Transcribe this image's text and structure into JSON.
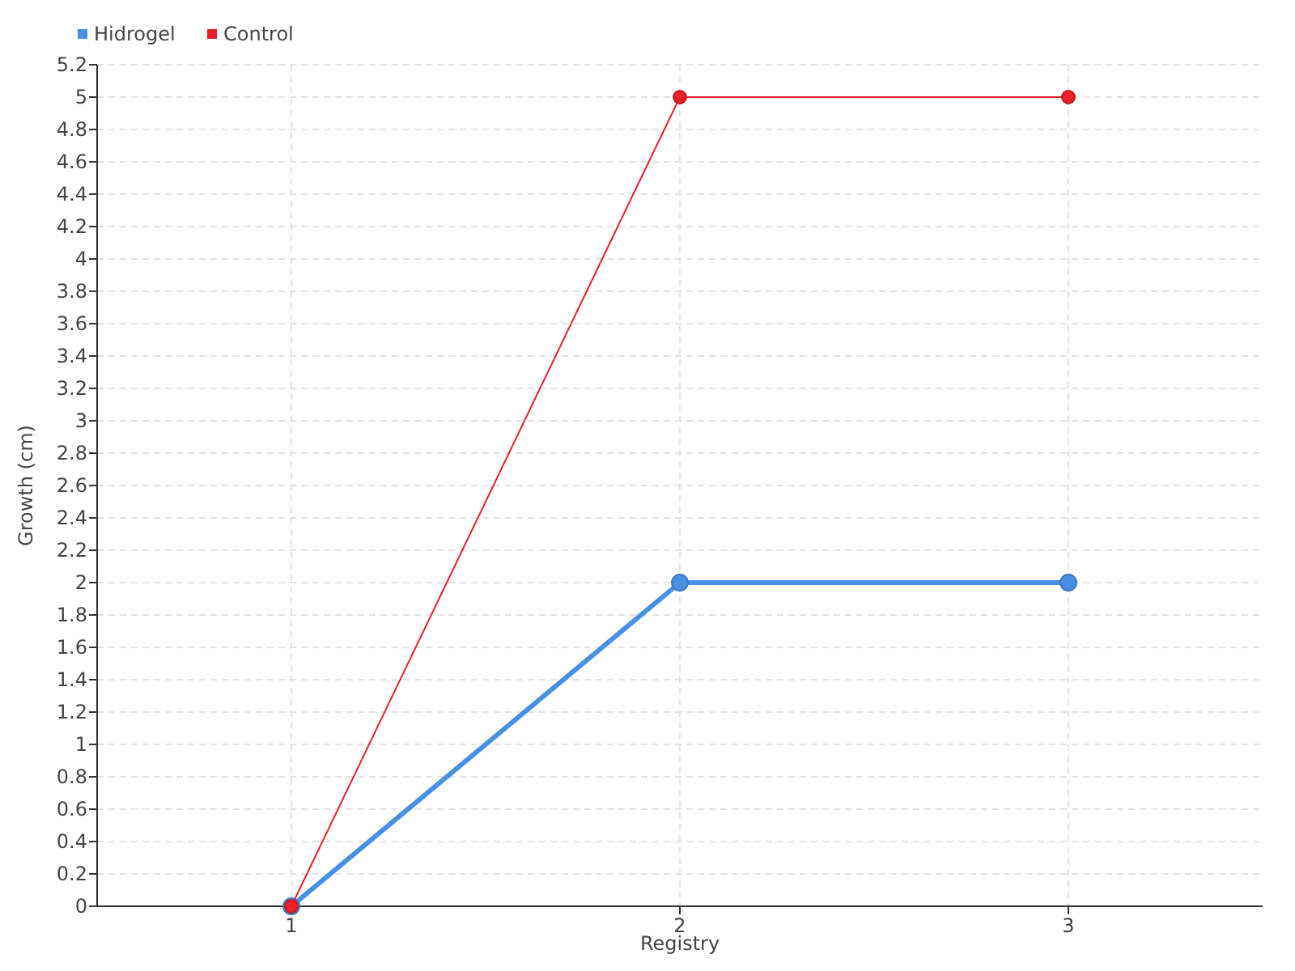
{
  "chart_data": {
    "type": "line",
    "xlabel": "Registry",
    "ylabel": "Growth (cm)",
    "x": [
      1,
      2,
      3
    ],
    "xlim": [
      0.5,
      3.5
    ],
    "xticks": [
      1,
      2,
      3
    ],
    "ylim": [
      0,
      5.2
    ],
    "yticks": [
      0,
      0.2,
      0.4,
      0.6,
      0.8,
      1,
      1.2,
      1.4,
      1.6,
      1.8,
      2,
      2.2,
      2.4,
      2.6,
      2.8,
      3,
      3.2,
      3.4,
      3.6,
      3.8,
      4,
      4.2,
      4.4,
      4.6,
      4.8,
      5,
      5.2
    ],
    "grid": true,
    "legend": "top left",
    "marker": "circle",
    "line_style": "solid",
    "series": [
      {
        "name": "Hidrogel",
        "color": "#4a90e2",
        "values": [
          0,
          2,
          2
        ]
      },
      {
        "name": "Control",
        "color": "#e8202a",
        "values": [
          0,
          5,
          5
        ]
      }
    ]
  }
}
